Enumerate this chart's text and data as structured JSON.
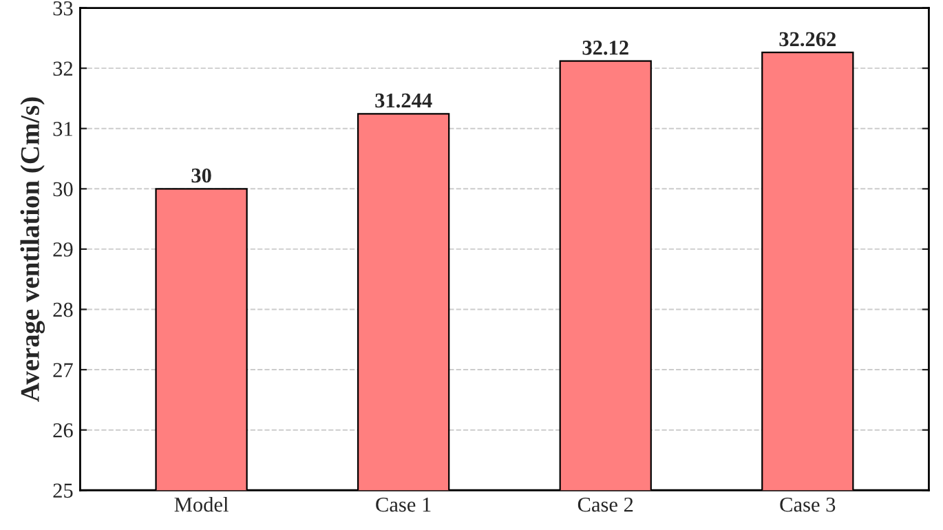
{
  "chart_data": {
    "type": "bar",
    "ylabel": "Average ventilation (Cm/s)",
    "categories": [
      "Model",
      "Case 1",
      "Case 2",
      "Case 3"
    ],
    "values": [
      30,
      31.244,
      32.12,
      32.262
    ],
    "color": "#ff7f7f",
    "ylim": [
      25,
      33
    ],
    "yticks": [
      25,
      26,
      27,
      28,
      29,
      30,
      31,
      32,
      33
    ],
    "grid": "y",
    "data_labels": true
  }
}
